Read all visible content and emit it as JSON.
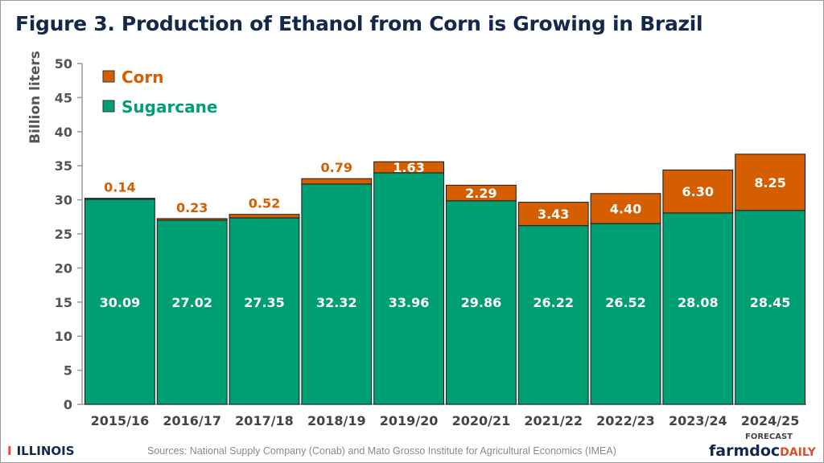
{
  "title": "Figure 3. Production of Ethanol from Corn is Growing in Brazil",
  "sources": "Sources: National Supply Company (Conab) and Mato Grosso Institute for Agricultural Economics (IMEA)",
  "logo_left": "ILLINOIS",
  "logo_right": {
    "main": "farmdoc",
    "accent": "DAILY"
  },
  "chart_data": {
    "type": "bar",
    "stacked": true,
    "ylabel": "Billion liters",
    "ylim": [
      0,
      50
    ],
    "yticks": [
      0,
      5,
      10,
      15,
      20,
      25,
      30,
      35,
      40,
      45,
      50
    ],
    "categories": [
      "2015/16",
      "2016/17",
      "2017/18",
      "2018/19",
      "2019/20",
      "2020/21",
      "2021/22",
      "2022/23",
      "2023/24",
      "2024/25"
    ],
    "category_note": {
      "2024/25": "FORECAST"
    },
    "legend_position": "top-left",
    "grid": false,
    "series": [
      {
        "name": "Sugarcane",
        "color": "#009e73",
        "values": [
          30.09,
          27.02,
          27.35,
          32.32,
          33.96,
          29.86,
          26.22,
          26.52,
          28.08,
          28.45
        ]
      },
      {
        "name": "Corn",
        "color": "#d55e00",
        "values": [
          0.14,
          0.23,
          0.52,
          0.79,
          1.63,
          2.29,
          3.43,
          4.4,
          6.3,
          8.25
        ]
      }
    ],
    "value_labels": {
      "Sugarcane": [
        "30.09",
        "27.02",
        "27.35",
        "32.32",
        "33.96",
        "29.86",
        "26.22",
        "26.52",
        "28.08",
        "28.45"
      ],
      "Corn": [
        "0.14",
        "0.23",
        "0.52",
        "0.79",
        "1.63",
        "2.29",
        "3.43",
        "4.40",
        "6.30",
        "8.25"
      ]
    }
  }
}
